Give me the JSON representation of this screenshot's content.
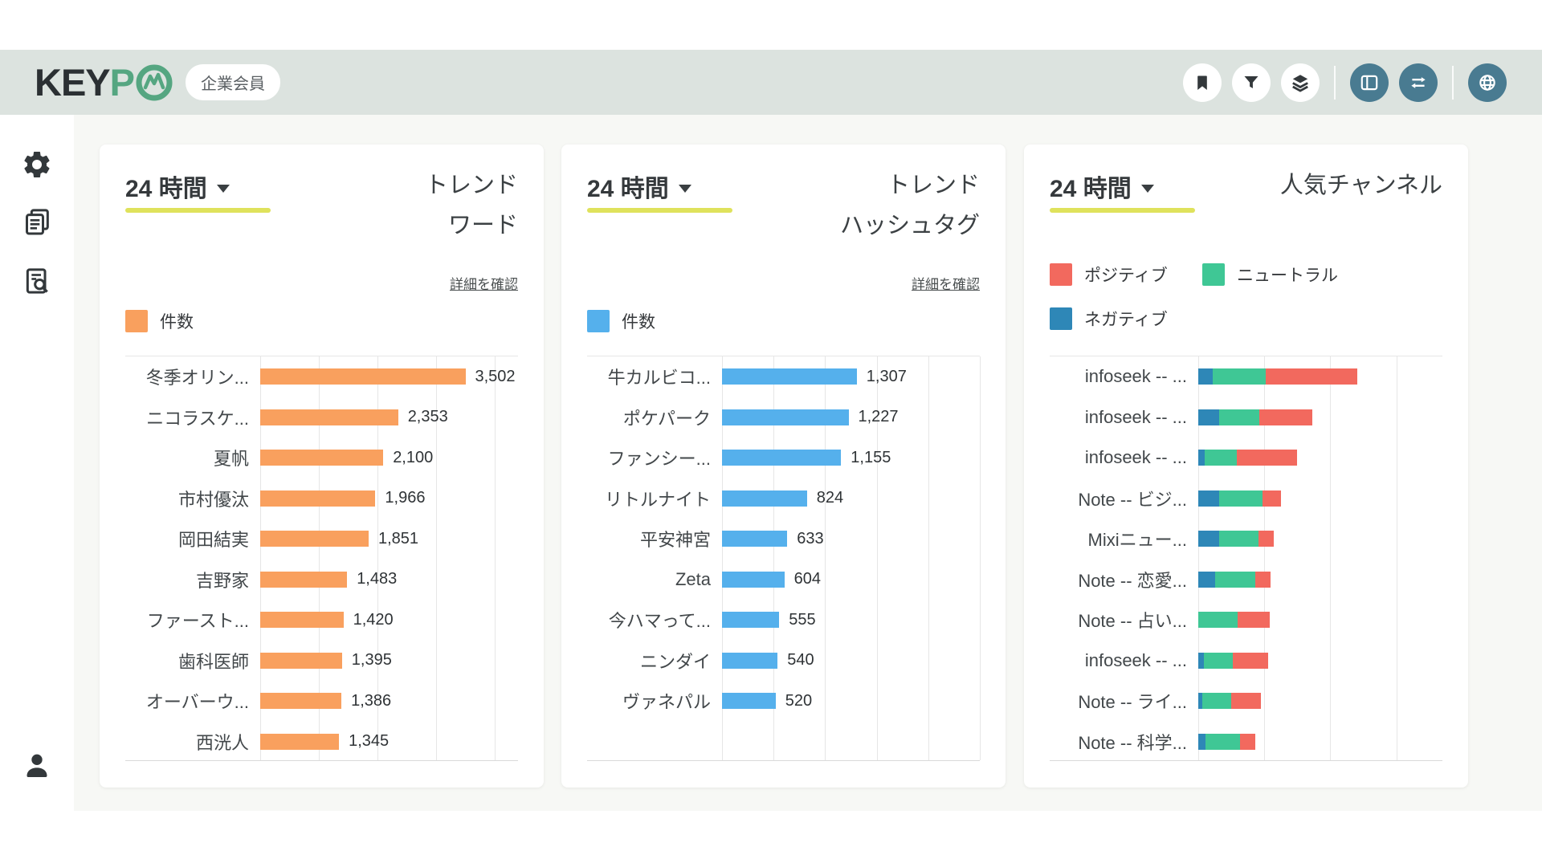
{
  "brand": {
    "logo_text": "KEY",
    "logo_accent": "P",
    "logo_mark": "pulse-circle-icon",
    "badge": "企業会員"
  },
  "header": {
    "icons_light": [
      "bookmark-icon",
      "filter-icon",
      "layers-icon"
    ],
    "icons_teal": [
      "layout-columns-icon",
      "swap-horizontal-icon"
    ],
    "icons_teal_after_divider": [
      "globe-icon"
    ]
  },
  "sidebar": {
    "items": [
      "settings",
      "documents",
      "document-search"
    ],
    "footer_item": "user-profile"
  },
  "colors": {
    "header_bg": "#dce3df",
    "main_bg": "#f7f8f5",
    "teal": "#497b91",
    "accent_underline": "#dfe25c",
    "orange": "#f9a05e",
    "blue": "#55b0ec",
    "positive_red": "#f2695e",
    "neutral_green": "#3fc795",
    "negative_blue": "#2e87b7"
  },
  "panels": [
    {
      "period_label": "24 時間",
      "title": "トレンド\nワード",
      "detail_link": "詳細を確認",
      "legend": [
        {
          "label": "件数",
          "color": "#f9a05e"
        }
      ],
      "chart_data": {
        "type": "bar",
        "orientation": "horizontal",
        "series_name": "件数",
        "color": "#f9a05e",
        "categories": [
          "冬季オリン...",
          "ニコラスケ...",
          "夏帆",
          "市村優汰",
          "岡田結実",
          "吉野家",
          "ファースト...",
          "歯科医師",
          "オーバーウ...",
          "西洸人"
        ],
        "values": [
          3502,
          2353,
          2100,
          1966,
          1851,
          1483,
          1420,
          1395,
          1386,
          1345
        ],
        "axis_max": 4400,
        "grid_interval": 1000,
        "grid": true,
        "value_labels": true
      }
    },
    {
      "period_label": "24 時間",
      "title": "トレンド\nハッシュタグ",
      "detail_link": "詳細を確認",
      "legend": [
        {
          "label": "件数",
          "color": "#55b0ec"
        }
      ],
      "chart_data": {
        "type": "bar",
        "orientation": "horizontal",
        "series_name": "件数",
        "color": "#55b0ec",
        "categories": [
          "牛カルビコ...",
          "ポケパーク",
          "ファンシー...",
          "リトルナイト",
          "平安神宮",
          "Zeta",
          "今ハマって...",
          "ニンダイ",
          "ヴァネパル"
        ],
        "values": [
          1307,
          1227,
          1155,
          824,
          633,
          604,
          555,
          540,
          520
        ],
        "axis_max": 2500,
        "grid_interval": 500,
        "grid": true,
        "value_labels": true
      }
    },
    {
      "period_label": "24 時間",
      "title": "人気チャンネル",
      "legend": [
        {
          "label": "ポジティブ",
          "color": "#f2695e"
        },
        {
          "label": "ニュートラル",
          "color": "#3fc795"
        },
        {
          "label": "ネガティブ",
          "color": "#2e87b7"
        }
      ],
      "chart_data": {
        "type": "stacked-bar",
        "orientation": "horizontal",
        "categories": [
          "infoseek -- ...",
          "infoseek -- ...",
          "infoseek -- ...",
          "Note -- ビジ...",
          "Mixiニュー...",
          "Note -- 恋愛...",
          "Note -- 占い...",
          "infoseek -- ...",
          "Note -- ライ...",
          "Note -- 科学..."
        ],
        "series": [
          {
            "name": "ネガティブ",
            "color": "#2e87b7",
            "values": [
              22,
              32,
              10,
              32,
              32,
              26,
              0,
              9,
              6,
              11
            ]
          },
          {
            "name": "ニュートラル",
            "color": "#3fc795",
            "values": [
              80,
              61,
              49,
              66,
              59,
              60,
              59,
              43,
              44,
              52
            ]
          },
          {
            "name": "ポジティブ",
            "color": "#f2695e",
            "values": [
              139,
              80,
              91,
              28,
              24,
              24,
              49,
              54,
              45,
              24
            ]
          }
        ],
        "axis_max": 370,
        "grid_interval": 100,
        "grid": true,
        "value_labels": false,
        "note": "segment values estimated from bar lengths; no numeric labels shown in chart"
      }
    }
  ]
}
